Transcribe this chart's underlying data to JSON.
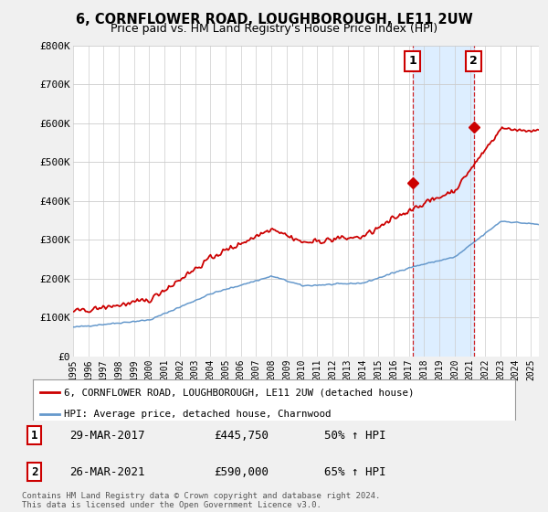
{
  "title": "6, CORNFLOWER ROAD, LOUGHBOROUGH, LE11 2UW",
  "subtitle": "Price paid vs. HM Land Registry's House Price Index (HPI)",
  "ylabel_ticks": [
    "£0",
    "£100K",
    "£200K",
    "£300K",
    "£400K",
    "£500K",
    "£600K",
    "£700K",
    "£800K"
  ],
  "ytick_values": [
    0,
    100000,
    200000,
    300000,
    400000,
    500000,
    600000,
    700000,
    800000
  ],
  "ylim": [
    0,
    800000
  ],
  "xlim_start": 1995.0,
  "xlim_end": 2025.5,
  "marker1_x": 2017.24,
  "marker1_y": 445750,
  "marker2_x": 2021.24,
  "marker2_y": 590000,
  "marker1_date": "29-MAR-2017",
  "marker1_price": "£445,750",
  "marker1_hpi": "50% ↑ HPI",
  "marker2_date": "26-MAR-2021",
  "marker2_price": "£590,000",
  "marker2_hpi": "65% ↑ HPI",
  "red_line_color": "#cc0000",
  "blue_line_color": "#6699cc",
  "vline_color": "#cc0000",
  "shade_color": "#ddeeff",
  "background_color": "#f0f0f0",
  "plot_bg_color": "#ffffff",
  "legend_label_red": "6, CORNFLOWER ROAD, LOUGHBOROUGH, LE11 2UW (detached house)",
  "legend_label_blue": "HPI: Average price, detached house, Charnwood",
  "footer": "Contains HM Land Registry data © Crown copyright and database right 2024.\nThis data is licensed under the Open Government Licence v3.0.",
  "xtick_years": [
    1995,
    1996,
    1997,
    1998,
    1999,
    2000,
    2001,
    2002,
    2003,
    2004,
    2005,
    2006,
    2007,
    2008,
    2009,
    2010,
    2011,
    2012,
    2013,
    2014,
    2015,
    2016,
    2017,
    2018,
    2019,
    2020,
    2021,
    2022,
    2023,
    2024,
    2025
  ]
}
